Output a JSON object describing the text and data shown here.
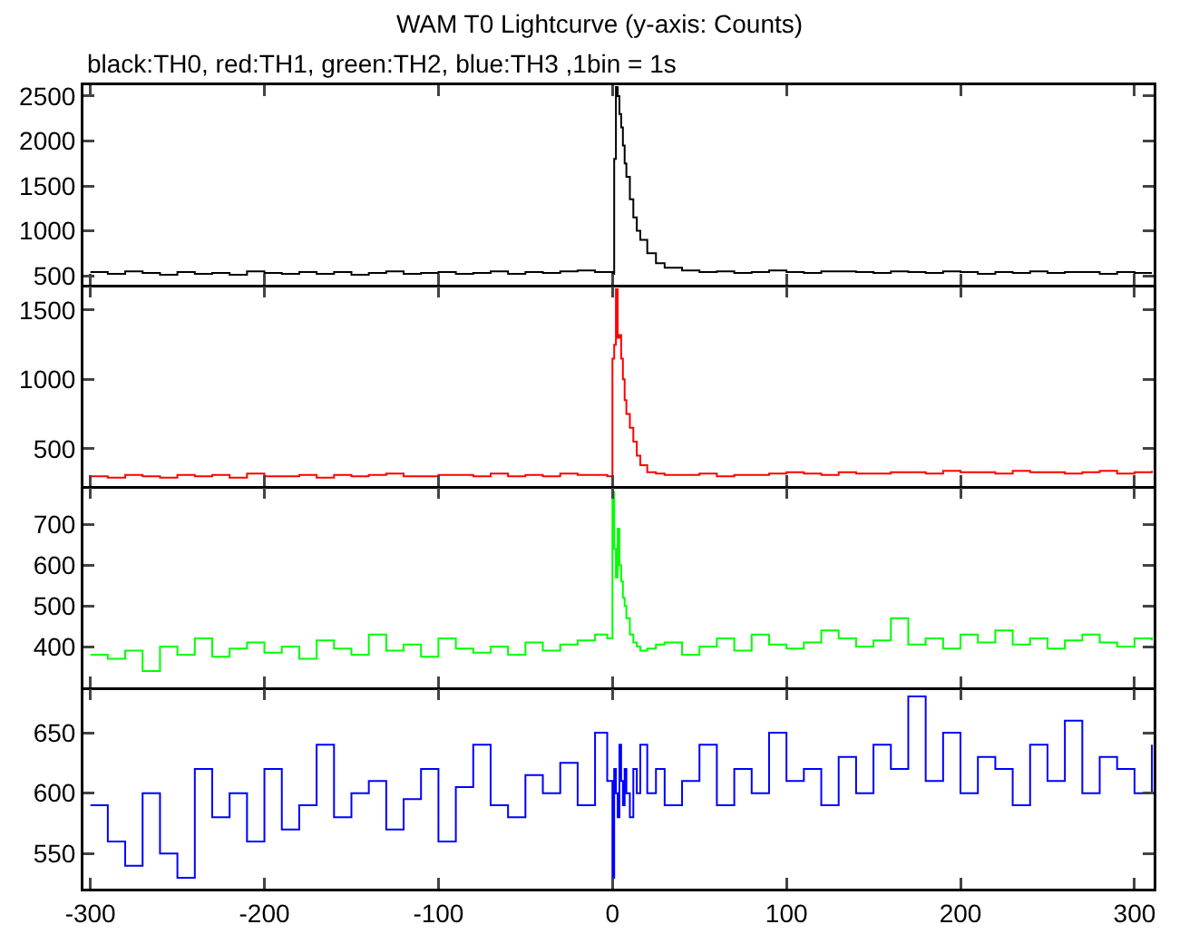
{
  "chart_data": [
    {
      "type": "step",
      "title": "WAM T0 Lightcurve (y-axis: Counts)",
      "subtitle": "black:TH0, red:TH1, green:TH2, blue:TH3 ,1bin = 1s",
      "line_style": "solid",
      "marker": "none",
      "tick_labels": "y",
      "xlim": [
        -304,
        311
      ],
      "xticks": [
        -300,
        -200,
        -100,
        0,
        100,
        200,
        300
      ],
      "ylim": [
        400,
        2620
      ],
      "yticks": [
        500,
        1000,
        1500,
        2000,
        2500
      ],
      "x": [
        -300,
        -290,
        -280,
        -270,
        -260,
        -250,
        -240,
        -230,
        -220,
        -210,
        -200,
        -190,
        -180,
        -170,
        -160,
        -150,
        -140,
        -130,
        -120,
        -110,
        -100,
        -90,
        -80,
        -70,
        -60,
        -50,
        -40,
        -30,
        -20,
        -10,
        -3,
        0,
        1,
        2,
        3,
        4,
        5,
        6,
        7,
        8,
        10,
        12,
        14,
        16,
        20,
        25,
        30,
        40,
        50,
        60,
        70,
        80,
        90,
        100,
        110,
        120,
        130,
        140,
        150,
        160,
        170,
        180,
        190,
        200,
        210,
        220,
        230,
        240,
        250,
        260,
        270,
        280,
        290,
        300,
        310
      ],
      "series": [
        {
          "color": "#000000",
          "values": [
            540,
            520,
            550,
            530,
            510,
            540,
            520,
            530,
            510,
            550,
            530,
            520,
            540,
            520,
            540,
            510,
            530,
            550,
            520,
            530,
            540,
            520,
            530,
            550,
            520,
            540,
            530,
            550,
            560,
            540,
            540,
            520,
            1800,
            2600,
            2500,
            2300,
            2150,
            1950,
            1750,
            1600,
            1350,
            1150,
            1000,
            900,
            750,
            640,
            590,
            560,
            540,
            550,
            530,
            540,
            560,
            540,
            530,
            550,
            550,
            540,
            530,
            550,
            540,
            530,
            550,
            540,
            520,
            540,
            530,
            550,
            530,
            540,
            540,
            520,
            540,
            530,
            530
          ]
        }
      ]
    },
    {
      "type": "step",
      "line_style": "solid",
      "marker": "none",
      "tick_labels": "y",
      "xlim": [
        -304,
        311
      ],
      "xticks": [
        -300,
        -200,
        -100,
        0,
        100,
        200,
        300
      ],
      "ylim": [
        230,
        1670
      ],
      "yticks": [
        500,
        1000,
        1500
      ],
      "x": [
        -300,
        -290,
        -280,
        -270,
        -260,
        -250,
        -240,
        -230,
        -220,
        -210,
        -200,
        -190,
        -180,
        -170,
        -160,
        -150,
        -140,
        -130,
        -120,
        -110,
        -100,
        -90,
        -80,
        -70,
        -60,
        -50,
        -40,
        -30,
        -20,
        -10,
        -3,
        0,
        1,
        2,
        3,
        4,
        5,
        6,
        7,
        8,
        10,
        12,
        14,
        16,
        20,
        25,
        30,
        40,
        50,
        60,
        70,
        80,
        90,
        100,
        110,
        120,
        130,
        140,
        150,
        160,
        170,
        180,
        190,
        200,
        210,
        220,
        230,
        240,
        250,
        260,
        270,
        280,
        290,
        300,
        310
      ],
      "series": [
        {
          "color": "#ff0000",
          "values": [
            300,
            290,
            310,
            300,
            290,
            310,
            300,
            310,
            290,
            320,
            300,
            300,
            310,
            290,
            310,
            300,
            310,
            320,
            300,
            300,
            310,
            310,
            300,
            320,
            300,
            310,
            300,
            320,
            310,
            310,
            300,
            1150,
            1250,
            1650,
            1300,
            1320,
            1150,
            1000,
            850,
            750,
            650,
            550,
            450,
            380,
            330,
            320,
            310,
            310,
            320,
            300,
            310,
            310,
            320,
            330,
            320,
            310,
            330,
            320,
            320,
            330,
            330,
            320,
            340,
            330,
            330,
            320,
            340,
            330,
            330,
            320,
            330,
            340,
            320,
            330,
            340
          ]
        }
      ]
    },
    {
      "type": "step",
      "line_style": "solid",
      "marker": "none",
      "tick_labels": "y",
      "xlim": [
        -304,
        311
      ],
      "xticks": [
        -300,
        -200,
        -100,
        0,
        100,
        200,
        300
      ],
      "ylim": [
        300,
        790
      ],
      "yticks": [
        400,
        500,
        600,
        700
      ],
      "x": [
        -300,
        -290,
        -280,
        -270,
        -260,
        -250,
        -240,
        -230,
        -220,
        -210,
        -200,
        -190,
        -180,
        -170,
        -160,
        -150,
        -140,
        -130,
        -120,
        -110,
        -100,
        -90,
        -80,
        -70,
        -60,
        -50,
        -40,
        -30,
        -20,
        -10,
        -3,
        0,
        1,
        2,
        3,
        4,
        5,
        6,
        7,
        8,
        10,
        12,
        14,
        16,
        20,
        25,
        30,
        40,
        50,
        60,
        70,
        80,
        90,
        100,
        110,
        120,
        130,
        140,
        150,
        160,
        170,
        180,
        190,
        200,
        210,
        220,
        230,
        240,
        250,
        260,
        270,
        280,
        290,
        300,
        310
      ],
      "series": [
        {
          "color": "#00ff00",
          "values": [
            380,
            370,
            390,
            340,
            400,
            380,
            420,
            375,
            395,
            410,
            385,
            400,
            370,
            415,
            395,
            380,
            430,
            390,
            405,
            375,
            420,
            395,
            385,
            400,
            380,
            410,
            390,
            405,
            415,
            430,
            420,
            780,
            640,
            570,
            690,
            600,
            560,
            520,
            500,
            470,
            430,
            410,
            400,
            390,
            395,
            405,
            410,
            380,
            400,
            420,
            390,
            430,
            405,
            395,
            410,
            440,
            420,
            400,
            415,
            470,
            405,
            420,
            395,
            430,
            410,
            440,
            405,
            420,
            395,
            415,
            430,
            410,
            400,
            420,
            415
          ]
        }
      ]
    },
    {
      "type": "step",
      "line_style": "solid",
      "marker": "none",
      "xlim": [
        -304,
        311
      ],
      "xticks": [
        -300,
        -200,
        -100,
        0,
        100,
        200,
        300
      ],
      "ylim": [
        521,
        686
      ],
      "yticks": [
        550,
        600,
        650
      ],
      "x": [
        -300,
        -290,
        -280,
        -270,
        -260,
        -250,
        -240,
        -230,
        -220,
        -210,
        -200,
        -190,
        -180,
        -170,
        -160,
        -150,
        -140,
        -130,
        -120,
        -110,
        -100,
        -90,
        -80,
        -70,
        -60,
        -50,
        -40,
        -30,
        -20,
        -10,
        -3,
        0,
        1,
        2,
        3,
        4,
        5,
        6,
        7,
        8,
        10,
        12,
        14,
        16,
        20,
        25,
        30,
        40,
        50,
        60,
        70,
        80,
        90,
        100,
        110,
        120,
        130,
        140,
        150,
        160,
        170,
        180,
        190,
        200,
        210,
        220,
        230,
        240,
        250,
        260,
        270,
        280,
        290,
        300,
        310
      ],
      "series": [
        {
          "color": "#0000ff",
          "values": [
            590,
            560,
            540,
            600,
            550,
            530,
            620,
            580,
            600,
            560,
            620,
            570,
            590,
            640,
            580,
            600,
            610,
            570,
            595,
            620,
            560,
            605,
            640,
            590,
            580,
            615,
            600,
            625,
            590,
            650,
            610,
            530,
            620,
            600,
            580,
            640,
            610,
            590,
            620,
            600,
            580,
            620,
            600,
            640,
            600,
            620,
            590,
            610,
            640,
            590,
            620,
            600,
            650,
            610,
            620,
            590,
            630,
            600,
            640,
            620,
            680,
            610,
            650,
            600,
            630,
            620,
            590,
            640,
            610,
            660,
            600,
            630,
            620,
            600,
            640
          ]
        }
      ]
    }
  ]
}
